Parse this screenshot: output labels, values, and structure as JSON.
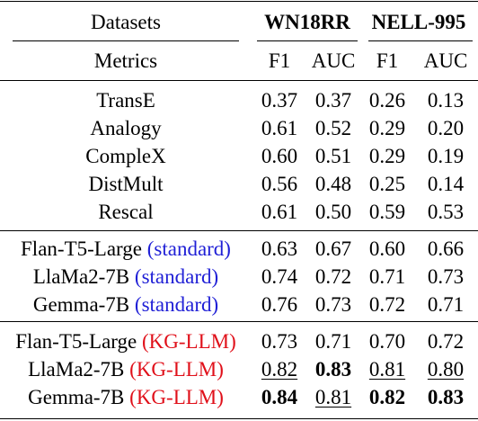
{
  "header": {
    "datasets_label": "Datasets",
    "metrics_label": "Metrics",
    "dataset_1": "WN18RR",
    "dataset_2": "NELL-995",
    "metric_cols": [
      "F1",
      "AUC",
      "F1",
      "AUC"
    ]
  },
  "groups": [
    {
      "rows": [
        {
          "model": "TransE",
          "tag": "",
          "values": [
            "0.37",
            "0.37",
            "0.26",
            "0.13"
          ],
          "bold": [
            false,
            false,
            false,
            false
          ],
          "underline": [
            false,
            false,
            false,
            false
          ]
        },
        {
          "model": "Analogy",
          "tag": "",
          "values": [
            "0.61",
            "0.52",
            "0.29",
            "0.20"
          ],
          "bold": [
            false,
            false,
            false,
            false
          ],
          "underline": [
            false,
            false,
            false,
            false
          ]
        },
        {
          "model": "CompleX",
          "tag": "",
          "values": [
            "0.60",
            "0.51",
            "0.29",
            "0.19"
          ],
          "bold": [
            false,
            false,
            false,
            false
          ],
          "underline": [
            false,
            false,
            false,
            false
          ]
        },
        {
          "model": "DistMult",
          "tag": "",
          "values": [
            "0.56",
            "0.48",
            "0.25",
            "0.14"
          ],
          "bold": [
            false,
            false,
            false,
            false
          ],
          "underline": [
            false,
            false,
            false,
            false
          ]
        },
        {
          "model": "Rescal",
          "tag": "",
          "values": [
            "0.61",
            "0.50",
            "0.59",
            "0.53"
          ],
          "bold": [
            false,
            false,
            false,
            false
          ],
          "underline": [
            false,
            false,
            false,
            false
          ]
        }
      ]
    },
    {
      "rows": [
        {
          "model": "Flan-T5-Large",
          "tag": "(standard)",
          "values": [
            "0.63",
            "0.67",
            "0.60",
            "0.66"
          ],
          "bold": [
            false,
            false,
            false,
            false
          ],
          "underline": [
            false,
            false,
            false,
            false
          ]
        },
        {
          "model": "LlaMa2-7B",
          "tag": "(standard)",
          "values": [
            "0.74",
            "0.72",
            "0.71",
            "0.73"
          ],
          "bold": [
            false,
            false,
            false,
            false
          ],
          "underline": [
            false,
            false,
            false,
            false
          ]
        },
        {
          "model": "Gemma-7B",
          "tag": "(standard)",
          "values": [
            "0.76",
            "0.73",
            "0.72",
            "0.71"
          ],
          "bold": [
            false,
            false,
            false,
            false
          ],
          "underline": [
            false,
            false,
            false,
            false
          ]
        }
      ]
    },
    {
      "rows": [
        {
          "model": "Flan-T5-Large",
          "tag": "(KG-LLM)",
          "values": [
            "0.73",
            "0.71",
            "0.70",
            "0.72"
          ],
          "bold": [
            false,
            false,
            false,
            false
          ],
          "underline": [
            false,
            false,
            false,
            false
          ]
        },
        {
          "model": "LlaMa2-7B",
          "tag": "(KG-LLM)",
          "values": [
            "0.82",
            "0.83",
            "0.81",
            "0.80"
          ],
          "bold": [
            false,
            true,
            false,
            false
          ],
          "underline": [
            true,
            false,
            true,
            true
          ]
        },
        {
          "model": "Gemma-7B",
          "tag": "(KG-LLM)",
          "values": [
            "0.84",
            "0.81",
            "0.82",
            "0.83"
          ],
          "bold": [
            true,
            false,
            true,
            true
          ],
          "underline": [
            false,
            true,
            false,
            false
          ]
        }
      ]
    }
  ],
  "colors": {
    "standard_tag": "#1f1fd6",
    "kg_llm_tag": "#e0101a"
  }
}
